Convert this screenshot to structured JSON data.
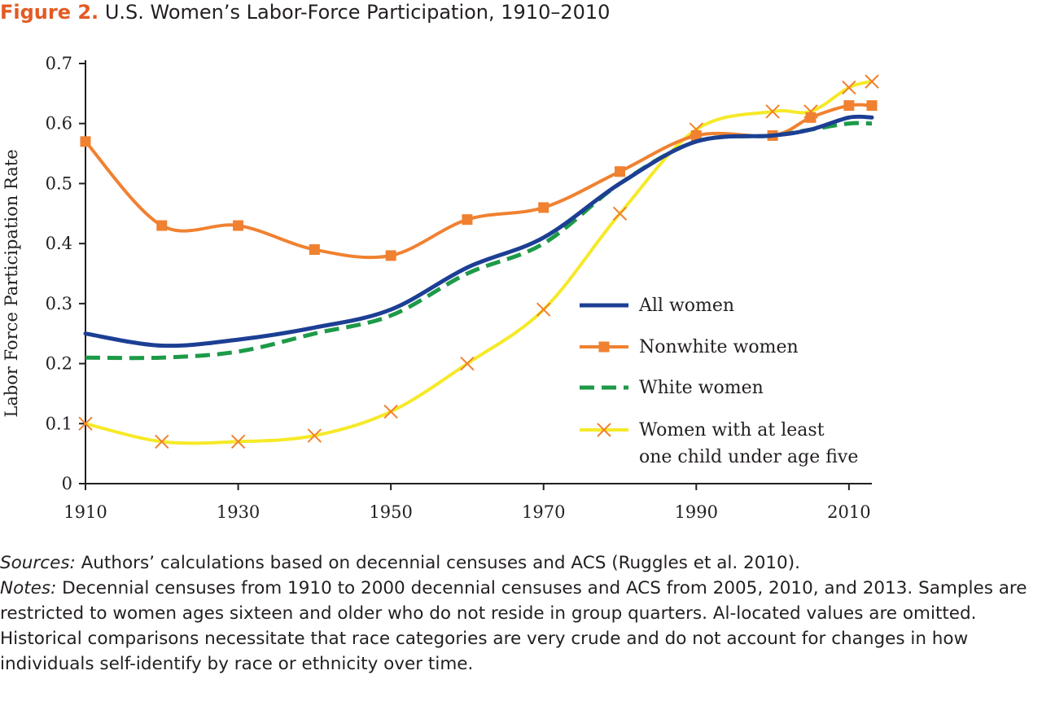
{
  "figure": {
    "label": "Figure 2.",
    "title": "U.S. Women’s Labor-Force Participation, 1910–2010"
  },
  "colors": {
    "all_women": "#1c3f94",
    "nonwhite_women": "#f08130",
    "white_women": "#1d9a48",
    "with_child": "#f6e928",
    "label_accent": "#e35b24",
    "axis": "#231f20"
  },
  "chart_data": {
    "type": "line",
    "ylabel": "Labor Force Participation Rate",
    "xlabel": "",
    "xlim": [
      1910,
      2013
    ],
    "ylim": [
      0,
      0.7
    ],
    "xticks": [
      1910,
      1930,
      1950,
      1970,
      1990,
      2010
    ],
    "xtick_labels": [
      "1910",
      "1930",
      "1950",
      "1970",
      "1990",
      "2010"
    ],
    "yticks": [
      0,
      0.1,
      0.2,
      0.3,
      0.4,
      0.5,
      0.6,
      0.7
    ],
    "ytick_labels": [
      "0",
      "0.1",
      "0.2",
      "0.3",
      "0.4",
      "0.5",
      "0.6",
      "0.7"
    ],
    "grid": false,
    "legend_position": "right-middle",
    "series": [
      {
        "key": "all_women",
        "name": "All women",
        "style": "solid",
        "marker": "none",
        "x": [
          1910,
          1920,
          1930,
          1940,
          1950,
          1960,
          1970,
          1980,
          1990,
          2000,
          2005,
          2010,
          2013
        ],
        "y": [
          0.25,
          0.23,
          0.24,
          0.26,
          0.29,
          0.36,
          0.41,
          0.5,
          0.57,
          0.58,
          0.59,
          0.61,
          0.61
        ]
      },
      {
        "key": "nonwhite_women",
        "name": "Nonwhite women",
        "style": "solid",
        "marker": "square",
        "x": [
          1910,
          1920,
          1930,
          1940,
          1950,
          1960,
          1970,
          1980,
          1990,
          2000,
          2005,
          2010,
          2013
        ],
        "y": [
          0.57,
          0.43,
          0.43,
          0.39,
          0.38,
          0.44,
          0.46,
          0.52,
          0.58,
          0.58,
          0.61,
          0.63,
          0.63
        ]
      },
      {
        "key": "white_women",
        "name": "White women",
        "style": "dashed",
        "marker": "none",
        "x": [
          1910,
          1920,
          1930,
          1940,
          1950,
          1960,
          1970,
          1980,
          1990,
          2000,
          2005,
          2010,
          2013
        ],
        "y": [
          0.21,
          0.21,
          0.22,
          0.25,
          0.28,
          0.35,
          0.4,
          0.5,
          0.57,
          0.58,
          0.59,
          0.6,
          0.6
        ]
      },
      {
        "key": "with_child",
        "name": [
          "Women with at least",
          "one child under age five"
        ],
        "style": "solid",
        "marker": "x",
        "x": [
          1910,
          1920,
          1930,
          1940,
          1950,
          1960,
          1970,
          1980,
          1990,
          2000,
          2005,
          2010,
          2013
        ],
        "y": [
          0.1,
          0.07,
          0.07,
          0.08,
          0.12,
          0.2,
          0.29,
          0.45,
          0.59,
          0.62,
          0.62,
          0.66,
          0.67
        ]
      }
    ]
  },
  "notes": {
    "sources_label": "Sources:",
    "sources_text": " Authors’ calculations based on decennial censuses and ACS (Ruggles et al. 2010).",
    "notes_label": "Notes:",
    "notes_text": " Decennial censuses from 1910 to 2000 decennial censuses and ACS from 2005, 2010, and 2013. Samples are restricted to women ages sixteen and older who do not reside in group quarters. Al-located values are omitted. Historical comparisons necessitate that race categories are very crude and do not account for changes in how individuals self-identify by race or ethnicity over time."
  }
}
